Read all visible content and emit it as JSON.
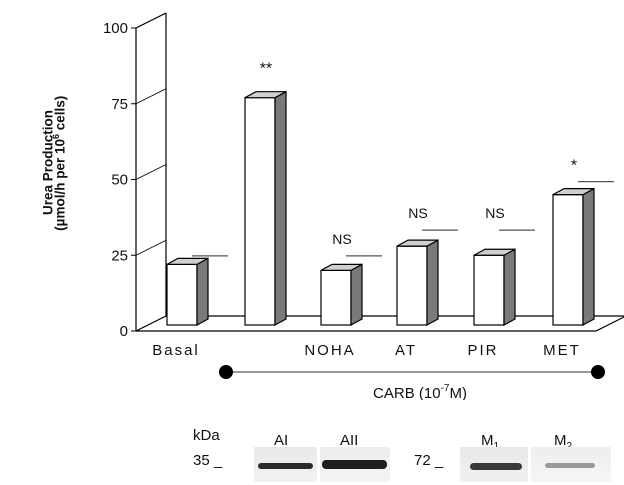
{
  "chart_data": {
    "type": "bar",
    "ylabel_line1": "Urea Production",
    "ylabel_line2_pre": "(",
    "ylabel_line2_mu": "µ",
    "ylabel_line2_mid": "mol/h per 10",
    "ylabel_line2_sup": "6",
    "ylabel_line2_post": " cells)",
    "ylim": [
      0,
      100
    ],
    "yticks": [
      0,
      25,
      50,
      75,
      100
    ],
    "categories": [
      "Basal",
      "",
      "NOHA",
      "AT",
      "PIR",
      "MET"
    ],
    "values": [
      22,
      77,
      20,
      28,
      25,
      45
    ],
    "error_caps": [
      24.8,
      null,
      24.8,
      33.3,
      33.3,
      49.3
    ],
    "annotations": [
      "",
      "**",
      "NS",
      "NS",
      "NS",
      "*"
    ],
    "group_label_pre": "CARB (10",
    "group_label_sup": "-7",
    "group_label_post": "M)",
    "bar_fill": "#ffffff",
    "bar_side": "#7a7a7a",
    "bar_top": "#cfcfcf"
  },
  "blot": {
    "left_unit": "kDa",
    "left_marker": "35 _",
    "left_labels": [
      "AI",
      "AII"
    ],
    "right_marker": "72 _",
    "right_labels": [
      {
        "main": "M",
        "sub": "1"
      },
      {
        "main": "M",
        "sub": "2"
      }
    ]
  }
}
